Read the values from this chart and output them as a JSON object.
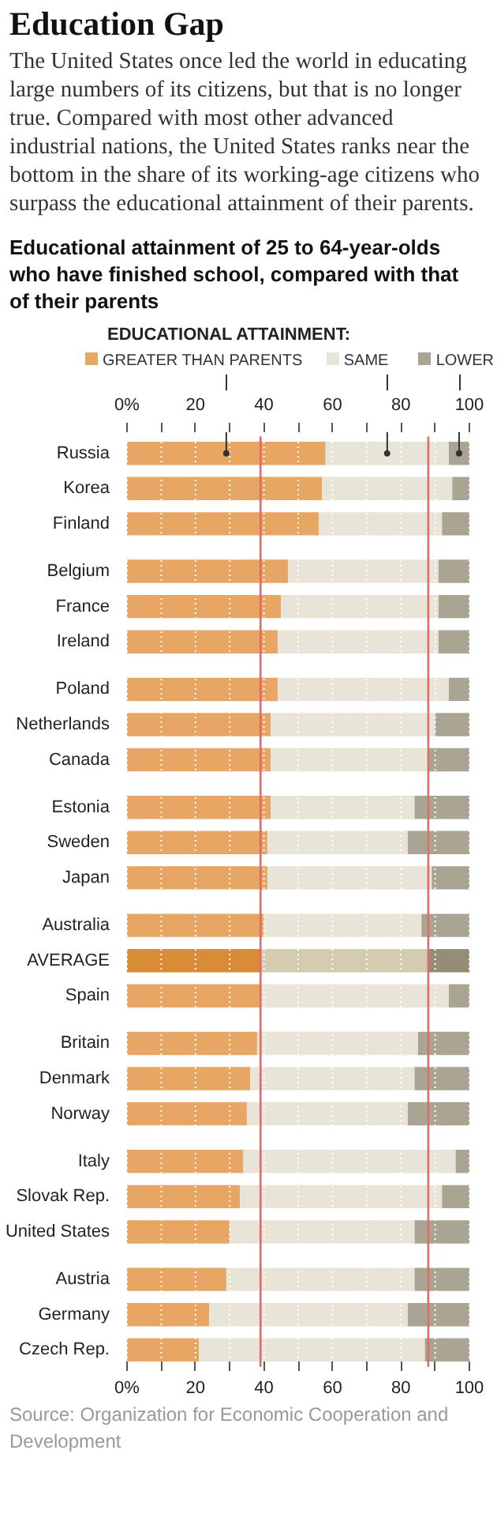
{
  "chart_data": {
    "type": "bar",
    "orientation": "horizontal",
    "stacked": true,
    "title": "Education Gap",
    "subtitle": "The United States once led the world in educating large numbers of its citizens, but that is no longer true. Compared with most other advanced industrial nations, the United States ranks near the bottom in the share of its working-age citizens who surpass the educational attainment of their parents.",
    "annotations": [
      "Educational attainment of 25 to 64-year-olds who have finished school, compared with that of their parents",
      "Source: Organization for Economic Cooperation and Development"
    ],
    "legend_title": "EDUCATIONAL ATTAINMENT:",
    "categories": [
      "Russia",
      "Korea",
      "Finland",
      "Belgium",
      "France",
      "Ireland",
      "Poland",
      "Netherlands",
      "Canada",
      "Estonia",
      "Sweden",
      "Japan",
      "Australia",
      "AVERAGE",
      "Spain",
      "Britain",
      "Denmark",
      "Norway",
      "Italy",
      "Slovak Rep.",
      "United States",
      "Austria",
      "Germany",
      "Czech Rep."
    ],
    "series": [
      {
        "name": "GREATER THAN PARENTS",
        "color": "#e8a664",
        "colors": [
          "#e8a664",
          "#e8a664",
          "#e8a664",
          "#e8a664",
          "#e8a664",
          "#e8a664",
          "#e8a664",
          "#e8a664",
          "#e8a664",
          "#e8a664",
          "#e8a664",
          "#e8a664",
          "#e8a664",
          "#d98b36",
          "#e8a664",
          "#e8a664",
          "#e8a664",
          "#e8a664",
          "#e8a664",
          "#e8a664",
          "#e8a664",
          "#e8a664",
          "#e8a664",
          "#e8a664"
        ],
        "values": [
          58,
          57,
          56,
          47,
          45,
          44,
          44,
          42,
          42,
          42,
          41,
          41,
          40,
          39,
          39,
          38,
          36,
          35,
          34,
          33,
          30,
          29,
          24,
          21
        ]
      },
      {
        "name": "SAME",
        "color": "#e8e4d8",
        "colors": [
          "#e8e4d8",
          "#e8e4d8",
          "#e8e4d8",
          "#e8e4d8",
          "#e8e4d8",
          "#e8e4d8",
          "#e8e4d8",
          "#e8e4d8",
          "#e8e4d8",
          "#e8e4d8",
          "#e8e4d8",
          "#e8e4d8",
          "#e8e4d8",
          "#d4ccb0",
          "#e8e4d8",
          "#e8e4d8",
          "#e8e4d8",
          "#e8e4d8",
          "#e8e4d8",
          "#e8e4d8",
          "#e8e4d8",
          "#e8e4d8",
          "#e8e4d8",
          "#e8e4d8"
        ],
        "values": [
          36,
          38,
          36,
          44,
          46,
          47,
          50,
          48,
          46,
          42,
          41,
          48,
          46,
          49,
          55,
          47,
          48,
          47,
          62,
          59,
          54,
          55,
          58,
          66
        ]
      },
      {
        "name": "LOWER",
        "color": "#aaa493",
        "colors": [
          "#aaa493",
          "#aaa493",
          "#aaa493",
          "#aaa493",
          "#aaa493",
          "#aaa493",
          "#aaa493",
          "#aaa493",
          "#aaa493",
          "#aaa493",
          "#aaa493",
          "#aaa493",
          "#aaa493",
          "#958e76",
          "#aaa493",
          "#aaa493",
          "#aaa493",
          "#aaa493",
          "#aaa493",
          "#aaa493",
          "#aaa493",
          "#aaa493",
          "#aaa493",
          "#aaa493"
        ],
        "values": [
          6,
          5,
          8,
          9,
          9,
          9,
          6,
          10,
          12,
          16,
          18,
          11,
          14,
          12,
          6,
          15,
          16,
          18,
          4,
          8,
          16,
          16,
          18,
          13
        ]
      }
    ],
    "xlim": [
      0,
      100
    ],
    "xticks": [
      {
        "value": 0,
        "label": "0%"
      },
      {
        "value": 10,
        "label": null
      },
      20,
      {
        "value": 30,
        "label": null
      },
      40,
      {
        "value": 50,
        "label": null
      },
      60,
      {
        "value": 70,
        "label": null
      },
      80,
      {
        "value": 90,
        "label": null
      },
      100
    ],
    "x2lim": [
      0,
      100
    ],
    "x2ticks": [
      {
        "value": 0,
        "label": "0%"
      },
      {
        "value": 10,
        "label": null
      },
      20,
      {
        "value": 30,
        "label": null
      },
      40,
      {
        "value": 50,
        "label": null
      },
      60,
      {
        "value": 70,
        "label": null
      },
      80,
      {
        "value": 90,
        "label": null
      },
      100
    ],
    "ref_lines": [
      {
        "axis": "x",
        "value": 39,
        "color": "#e06a6a"
      },
      {
        "axis": "x",
        "value": 88,
        "color": "#e06a6a"
      }
    ],
    "grid": "x",
    "legend": "top"
  }
}
